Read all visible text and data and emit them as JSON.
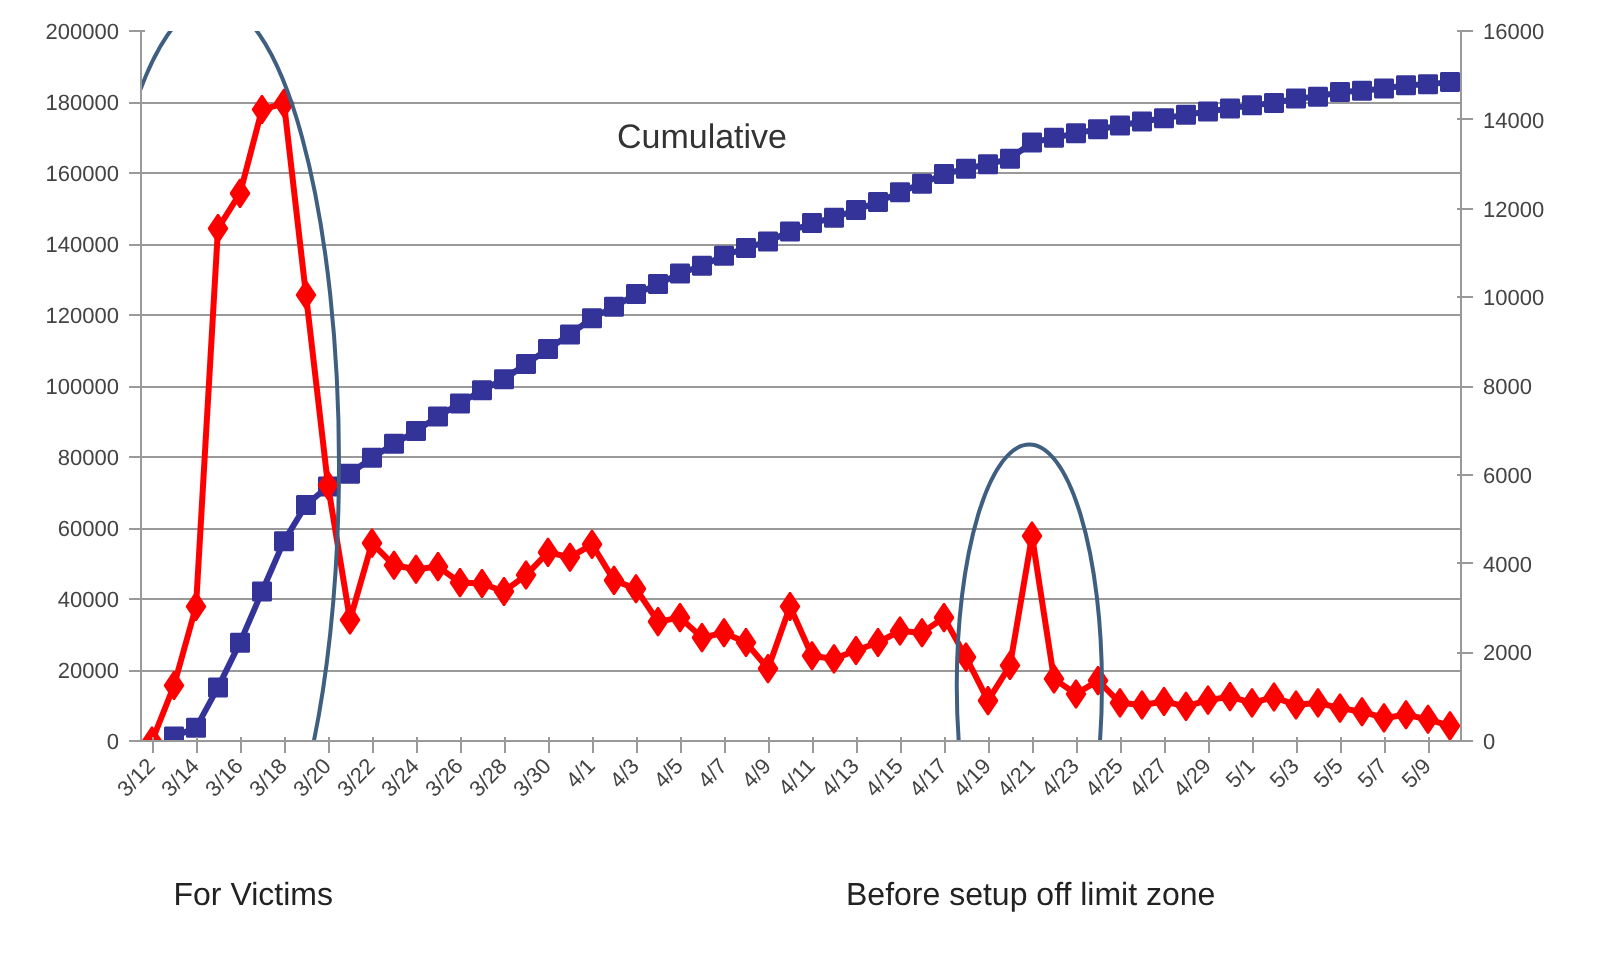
{
  "chart_data": {
    "type": "line",
    "categories": [
      "3/12",
      null,
      "3/14",
      null,
      "3/16",
      null,
      "3/18",
      null,
      "3/20",
      null,
      "3/22",
      null,
      "3/24",
      null,
      "3/26",
      null,
      "3/28",
      null,
      "3/30",
      null,
      "4/1",
      null,
      "4/3",
      null,
      "4/5",
      null,
      "4/7",
      null,
      "4/9",
      null,
      "4/11",
      null,
      "4/13",
      null,
      "4/15",
      null,
      "4/17",
      null,
      "4/19",
      null,
      "4/21",
      null,
      "4/23",
      null,
      "4/25",
      null,
      "4/27",
      null,
      "4/29",
      null,
      "5/1",
      null,
      "5/3",
      null,
      "5/5",
      null,
      "5/7",
      null,
      "5/9",
      null
    ],
    "series": [
      {
        "name": "Cumulative",
        "color": "#333399",
        "marker": "square",
        "values": [
          null,
          1300,
          3700,
          15100,
          27700,
          42100,
          56300,
          66500,
          71700,
          75300,
          79800,
          83700,
          87300,
          91400,
          95100,
          98800,
          101900,
          106200,
          110400,
          114500,
          119100,
          122300,
          125900,
          128700,
          131700,
          133900,
          136700,
          138900,
          140700,
          143500,
          145900,
          147400,
          149600,
          151800,
          154600,
          157000,
          159700,
          161200,
          162500,
          164000,
          168600,
          169900,
          171200,
          172300,
          173400,
          174500,
          175400,
          176400,
          177300,
          178200,
          179100,
          179700,
          181000,
          181500,
          182800,
          183200,
          183800,
          184700,
          185000,
          185600
        ]
      },
      {
        "color": "#ff0000",
        "marker": "diamond",
        "axis": "y2",
        "values": [
          0,
          1250,
          3030,
          11550,
          12340,
          14230,
          14370,
          10050,
          5760,
          2730,
          4460,
          3960,
          3870,
          3930,
          3570,
          3550,
          3370,
          3740,
          4250,
          4140,
          4430,
          3620,
          3430,
          2690,
          2780,
          2330,
          2440,
          2220,
          1630,
          3030,
          1920,
          1850,
          2040,
          2220,
          2480,
          2440,
          2780,
          1890,
          910,
          1700,
          4620,
          1400,
          1060,
          1360,
          860,
          810,
          890,
          780,
          920,
          1000,
          860,
          990,
          810,
          860,
          740,
          660,
          520,
          590,
          490,
          340
        ]
      }
    ],
    "ylim": [
      0,
      200000
    ],
    "yticks": [
      0,
      20000,
      40000,
      60000,
      80000,
      100000,
      120000,
      140000,
      160000,
      180000,
      200000
    ],
    "y2lim": [
      0,
      16000
    ],
    "y2ticks": [
      0,
      2000,
      4000,
      6000,
      8000,
      10000,
      12000,
      14000,
      16000
    ],
    "grid": "y",
    "annotations": [
      "For Victims",
      "Before setup off limit zone"
    ]
  }
}
